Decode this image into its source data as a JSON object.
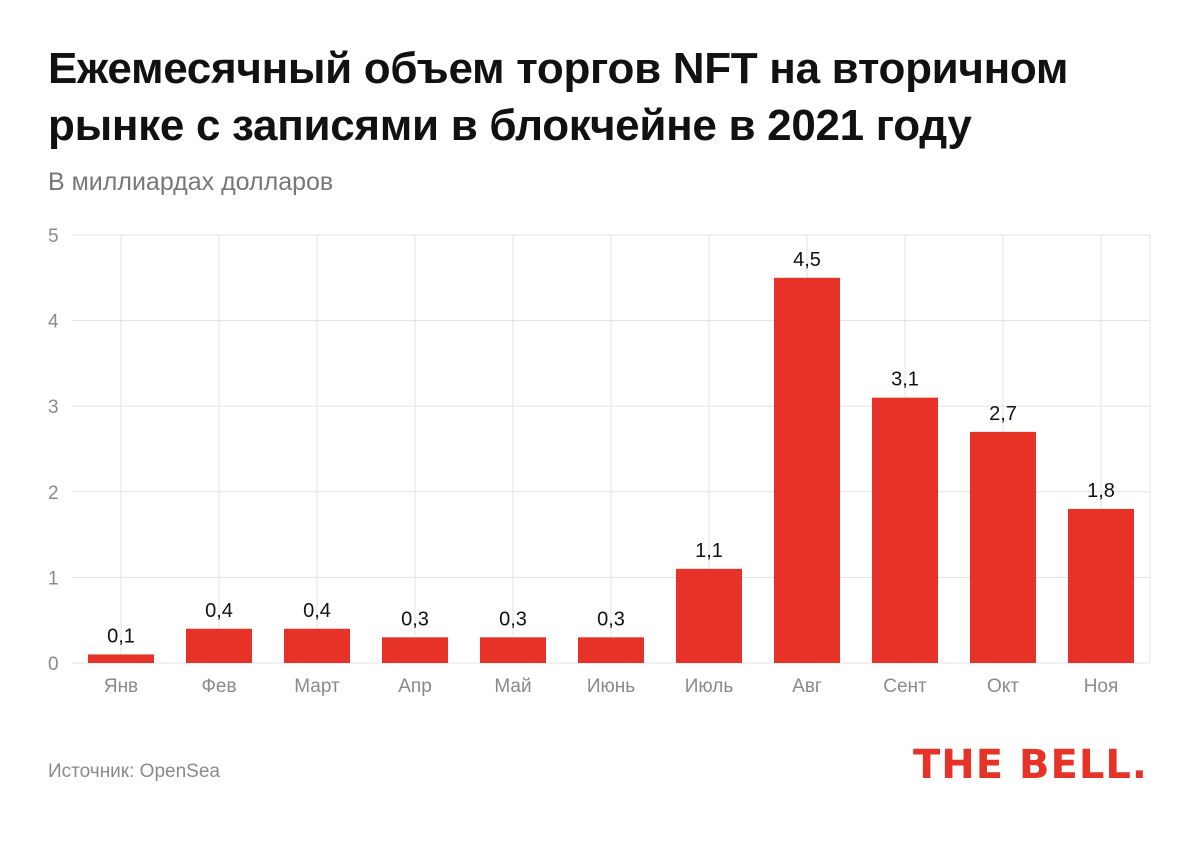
{
  "title": "Ежемесячный объем торгов NFT на вторичном рынке с записями в блокчейне в 2021 году",
  "subtitle": "В миллиардах долларов",
  "source": "Источник: OpenSea",
  "logo": "THE BELL.",
  "colors": {
    "bar": "#e63227",
    "grid": "#e3e3e3",
    "tick_text": "#8a8a8a",
    "label_text": "#111111",
    "logo": "#e63227"
  },
  "chart_data": {
    "type": "bar",
    "title": "Ежемесячный объем торгов NFT на вторичном рынке с записями в блокчейне в 2021 году",
    "ylabel": "В миллиардах долларов",
    "xlabel": "",
    "categories": [
      "Янв",
      "Фев",
      "Март",
      "Апр",
      "Май",
      "Июнь",
      "Июль",
      "Авг",
      "Сент",
      "Окт",
      "Ноя"
    ],
    "values": [
      0.1,
      0.4,
      0.4,
      0.3,
      0.3,
      0.3,
      1.1,
      4.5,
      3.1,
      2.7,
      1.8
    ],
    "value_labels": [
      "0,1",
      "0,4",
      "0,4",
      "0,3",
      "0,3",
      "0,3",
      "1,1",
      "4,5",
      "3,1",
      "2,7",
      "1,8"
    ],
    "ylim": [
      0,
      5
    ],
    "yticks": [
      0,
      1,
      2,
      3,
      4,
      5
    ],
    "grid": true
  }
}
